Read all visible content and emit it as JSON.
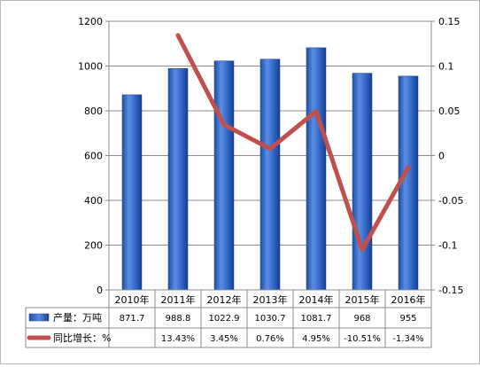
{
  "chart_data": {
    "type": "bar",
    "categories": [
      "2010年",
      "2011年",
      "2012年",
      "2013年",
      "2014年",
      "2015年",
      "2016年"
    ],
    "series": [
      {
        "name": "产量：万吨",
        "type": "bar",
        "axis": "left",
        "values": [
          871.7,
          988.8,
          1022.9,
          1030.7,
          1081.7,
          968,
          955
        ],
        "labels": [
          "871.7",
          "988.8",
          "1022.9",
          "1030.7",
          "1081.7",
          "968",
          "955"
        ],
        "color": "#3a6fd0"
      },
      {
        "name": "同比增长：%",
        "type": "line",
        "axis": "right",
        "values": [
          null,
          0.1343,
          0.0345,
          0.0076,
          0.0495,
          -0.1051,
          -0.0134
        ],
        "labels": [
          "",
          "13.43%",
          "3.45%",
          "0.76%",
          "4.95%",
          "-10.51%",
          "-1.34%"
        ],
        "color": "#c0504d"
      }
    ],
    "ylim_left": [
      0,
      1200
    ],
    "yticks_left": [
      "0",
      "200",
      "400",
      "600",
      "800",
      "1000",
      "1200"
    ],
    "ylim_right": [
      -0.15,
      0.15
    ],
    "yticks_right": [
      "-0.15",
      "-0.1",
      "-0.05",
      "0",
      "0.05",
      "0.1",
      "0.15"
    ],
    "grid": true,
    "legend": "data-table"
  }
}
